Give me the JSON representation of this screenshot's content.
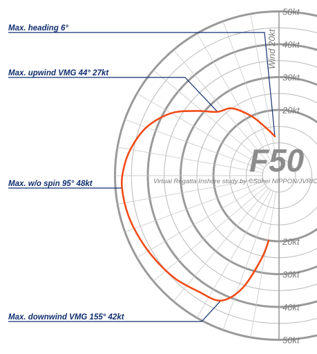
{
  "chart_data": {
    "type": "polar-line",
    "title": "",
    "brand": "F50",
    "credit": "Virtual Regatta Inshore study by ©Sohei NIPPON/JVRIC",
    "wind_label": "Wind 20kt",
    "radial_unit": "kt",
    "r_ticks": [
      "50kt",
      "40kt",
      "30kt",
      "20kt"
    ],
    "r_range": [
      0,
      50
    ],
    "angle_range_deg": [
      0,
      180
    ],
    "series": [
      {
        "color": "#f24a16",
        "points": [
          {
            "angle": 6,
            "speed": 12
          },
          {
            "angle": 15,
            "speed": 15
          },
          {
            "angle": 25,
            "speed": 20
          },
          {
            "angle": 35,
            "speed": 25
          },
          {
            "angle": 44,
            "speed": 27
          },
          {
            "angle": 52,
            "speed": 32
          },
          {
            "angle": 60,
            "speed": 38
          },
          {
            "angle": 70,
            "speed": 43
          },
          {
            "angle": 80,
            "speed": 46
          },
          {
            "angle": 88,
            "speed": 47.5
          },
          {
            "angle": 95,
            "speed": 48
          },
          {
            "angle": 105,
            "speed": 47.5
          },
          {
            "angle": 115,
            "speed": 46.5
          },
          {
            "angle": 125,
            "speed": 45.5
          },
          {
            "angle": 135,
            "speed": 44.5
          },
          {
            "angle": 145,
            "speed": 43
          },
          {
            "angle": 155,
            "speed": 42
          },
          {
            "angle": 162,
            "speed": 36
          },
          {
            "angle": 168,
            "speed": 26
          },
          {
            "angle": 171,
            "speed": 20
          }
        ]
      }
    ],
    "annotations": [
      {
        "label": "Max. heading   6°",
        "angle": 6,
        "speed": 12
      },
      {
        "label": "Max. upwind VMG   44°   27kt",
        "angle": 44,
        "speed": 27
      },
      {
        "label": "Max. w/o spin 95°   48kt",
        "angle": 95,
        "speed": 48
      },
      {
        "label": "Max. downwind VMG   155°   42kt",
        "angle": 155,
        "speed": 42
      }
    ],
    "ring_step": 5,
    "major_rings": [
      20,
      30,
      40,
      50
    ],
    "spoke_step_deg": 10
  }
}
